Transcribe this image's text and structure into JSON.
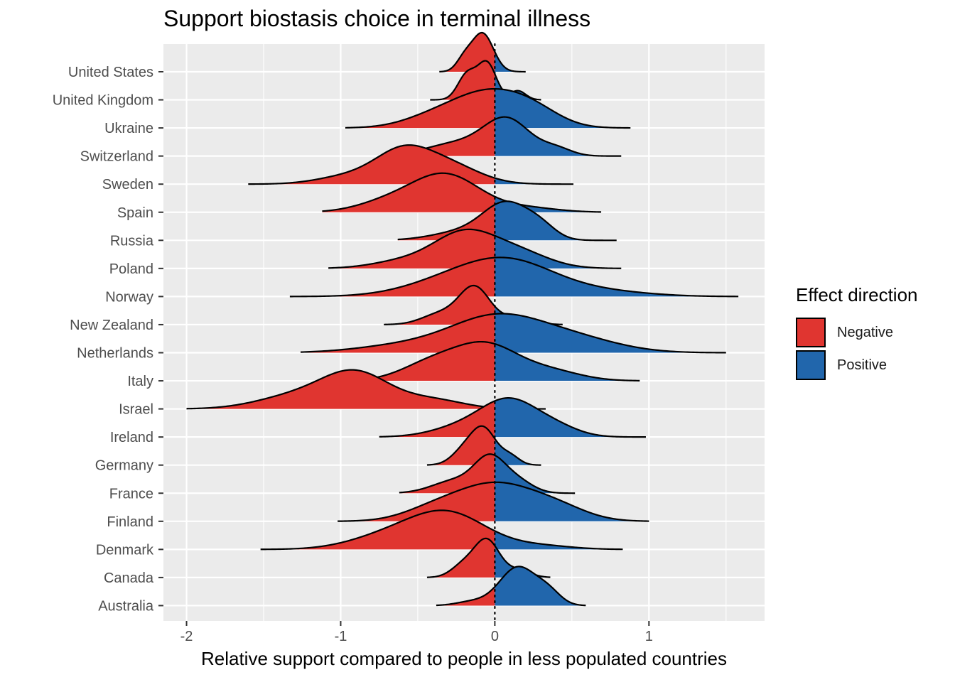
{
  "chart_data": {
    "type": "ridgeline",
    "title": "Support biostasis choice in terminal illness",
    "xlabel": "Relative support compared to people in less populated countries",
    "ylabel": "",
    "xlim": [
      -2.15,
      1.75
    ],
    "x_ticks": [
      "-2",
      "-1",
      "0",
      "1"
    ],
    "x_tick_values": [
      -2,
      -1,
      0,
      1
    ],
    "grid": true,
    "reference_line_x": 0,
    "legend": {
      "title": "Effect direction",
      "position": "right",
      "entries": [
        {
          "label": "Negative",
          "color": "#E03530"
        },
        {
          "label": "Positive",
          "color": "#2166AC"
        }
      ]
    },
    "countries": [
      {
        "name": "United States",
        "min": -0.36,
        "max": 0.2,
        "peaks": [
          [
            -0.08,
            0.07,
            1.0
          ],
          [
            -0.2,
            0.05,
            0.3
          ]
        ]
      },
      {
        "name": "United Kingdom",
        "min": -0.42,
        "max": 0.3,
        "peaks": [
          [
            -0.05,
            0.06,
            1.0
          ],
          [
            -0.18,
            0.06,
            0.7
          ],
          [
            0.15,
            0.05,
            0.25
          ]
        ]
      },
      {
        "name": "Ukraine",
        "min": -0.97,
        "max": 0.88,
        "peaks": [
          [
            -0.05,
            0.22,
            0.95
          ],
          [
            0.25,
            0.18,
            0.45
          ],
          [
            -0.4,
            0.2,
            0.3
          ]
        ]
      },
      {
        "name": "Switzerland",
        "min": -0.67,
        "max": 0.82,
        "peaks": [
          [
            0.08,
            0.15,
            1.0
          ],
          [
            -0.25,
            0.2,
            0.35
          ],
          [
            0.4,
            0.1,
            0.2
          ]
        ]
      },
      {
        "name": "Sweden",
        "min": -1.6,
        "max": 0.51,
        "peaks": [
          [
            -0.6,
            0.18,
            1.0
          ],
          [
            -0.3,
            0.2,
            0.6
          ],
          [
            -0.95,
            0.2,
            0.25
          ]
        ]
      },
      {
        "name": "Spain",
        "min": -1.12,
        "max": 0.69,
        "peaks": [
          [
            -0.32,
            0.22,
            1.0
          ],
          [
            -0.7,
            0.2,
            0.25
          ],
          [
            0.2,
            0.2,
            0.12
          ]
        ]
      },
      {
        "name": "Russia",
        "min": -0.63,
        "max": 0.79,
        "peaks": [
          [
            0.08,
            0.15,
            1.0
          ],
          [
            0.3,
            0.1,
            0.3
          ],
          [
            -0.2,
            0.2,
            0.25
          ]
        ]
      },
      {
        "name": "Poland",
        "min": -1.08,
        "max": 0.82,
        "peaks": [
          [
            -0.2,
            0.2,
            1.0
          ],
          [
            0.15,
            0.2,
            0.45
          ],
          [
            -0.6,
            0.2,
            0.2
          ]
        ]
      },
      {
        "name": "Norway",
        "min": -1.33,
        "max": 1.58,
        "peaks": [
          [
            0.1,
            0.3,
            1.0
          ],
          [
            -0.3,
            0.3,
            0.4
          ],
          [
            0.7,
            0.3,
            0.15
          ]
        ]
      },
      {
        "name": "New Zealand",
        "min": -0.72,
        "max": 0.44,
        "peaks": [
          [
            -0.13,
            0.1,
            1.0
          ],
          [
            -0.35,
            0.12,
            0.3
          ],
          [
            0.15,
            0.1,
            0.2
          ]
        ]
      },
      {
        "name": "Netherlands",
        "min": -1.26,
        "max": 1.5,
        "peaks": [
          [
            0.0,
            0.3,
            1.0
          ],
          [
            0.5,
            0.3,
            0.4
          ],
          [
            -0.6,
            0.3,
            0.2
          ]
        ]
      },
      {
        "name": "Italy",
        "min": -1.06,
        "max": 0.94,
        "peaks": [
          [
            -0.05,
            0.2,
            1.0
          ],
          [
            -0.4,
            0.2,
            0.55
          ],
          [
            0.35,
            0.2,
            0.3
          ]
        ]
      },
      {
        "name": "Israel",
        "min": -2.0,
        "max": 0.33,
        "peaks": [
          [
            -0.9,
            0.22,
            1.0
          ],
          [
            -1.3,
            0.25,
            0.35
          ],
          [
            -0.4,
            0.2,
            0.25
          ]
        ]
      },
      {
        "name": "Ireland",
        "min": -0.75,
        "max": 0.98,
        "peaks": [
          [
            0.1,
            0.18,
            1.0
          ],
          [
            -0.2,
            0.2,
            0.3
          ],
          [
            0.4,
            0.15,
            0.25
          ]
        ]
      },
      {
        "name": "Germany",
        "min": -0.44,
        "max": 0.3,
        "peaks": [
          [
            -0.07,
            0.08,
            1.0
          ],
          [
            -0.2,
            0.08,
            0.4
          ],
          [
            0.1,
            0.06,
            0.25
          ]
        ]
      },
      {
        "name": "France",
        "min": -0.62,
        "max": 0.52,
        "peaks": [
          [
            -0.03,
            0.1,
            1.0
          ],
          [
            -0.25,
            0.15,
            0.4
          ],
          [
            0.15,
            0.1,
            0.35
          ]
        ]
      },
      {
        "name": "Finland",
        "min": -1.02,
        "max": 1.0,
        "peaks": [
          [
            0.0,
            0.25,
            1.0
          ],
          [
            -0.4,
            0.2,
            0.3
          ],
          [
            0.4,
            0.2,
            0.35
          ]
        ]
      },
      {
        "name": "Denmark",
        "min": -1.52,
        "max": 0.83,
        "peaks": [
          [
            -0.3,
            0.25,
            1.0
          ],
          [
            -0.7,
            0.25,
            0.35
          ],
          [
            0.3,
            0.2,
            0.1
          ]
        ]
      },
      {
        "name": "Canada",
        "min": -0.44,
        "max": 0.36,
        "peaks": [
          [
            -0.05,
            0.08,
            1.0
          ],
          [
            -0.2,
            0.08,
            0.35
          ],
          [
            0.15,
            0.08,
            0.2
          ]
        ]
      },
      {
        "name": "Australia",
        "min": -0.38,
        "max": 0.59,
        "peaks": [
          [
            0.15,
            0.12,
            1.0
          ],
          [
            0.35,
            0.08,
            0.3
          ],
          [
            -0.15,
            0.1,
            0.1
          ]
        ]
      }
    ]
  }
}
